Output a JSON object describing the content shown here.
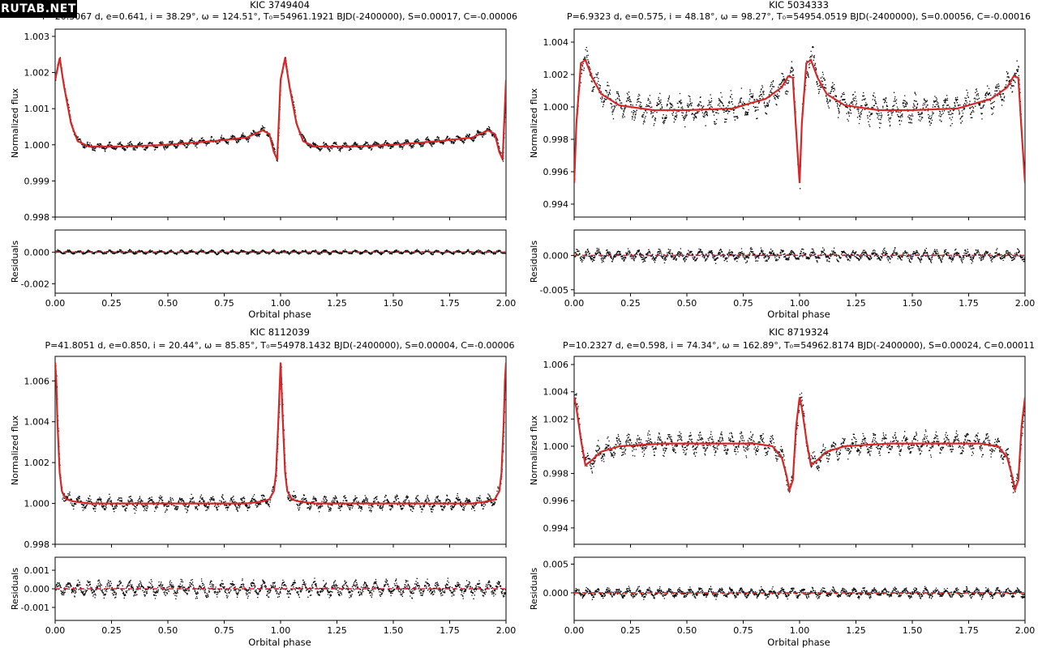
{
  "watermark": "RUTAB.NET",
  "colors": {
    "model": "#d62728",
    "points": "#000000",
    "frame": "#000000"
  },
  "chart_data": [
    {
      "type": "scatter",
      "title": "KIC 3749404",
      "subtitle": "P=20.3067 d, e=0.641, i = 38.29°, ω = 124.51°, T₀=54961.1921 BJD(-2400000), S=0.00017, C=-0.00006",
      "xlabel": "Orbital phase",
      "ylabel": "Normalized flux",
      "residual_ylabel": "Residuals",
      "xlim": [
        0,
        2
      ],
      "ylim": [
        0.998,
        1.0032
      ],
      "residual_ylim": [
        -0.0026,
        0.0014
      ],
      "xticks": [
        0,
        0.25,
        0.5,
        0.75,
        1.0,
        1.25,
        1.5,
        1.75,
        2.0
      ],
      "xtick_labels": [
        "0.00",
        "0.25",
        "0.50",
        "0.75",
        "1.00",
        "1.25",
        "1.50",
        "1.75",
        "2.00"
      ],
      "yticks": [
        0.998,
        0.999,
        1.0,
        1.001,
        1.002,
        1.003
      ],
      "ytick_labels": [
        "0.998",
        "0.999",
        "1.000",
        "1.001",
        "1.002",
        "1.003"
      ],
      "residual_yticks": [
        -0.002,
        0.0
      ],
      "residual_ytick_labels": [
        "-0.002",
        "0.000"
      ],
      "model": {
        "x": [
          0,
          0.02,
          0.04,
          0.07,
          0.1,
          0.15,
          0.3,
          0.5,
          0.7,
          0.85,
          0.92,
          0.95,
          0.97,
          0.985,
          1.0,
          1.02,
          1.04,
          1.07,
          1.1,
          1.15,
          1.3,
          1.5,
          1.7,
          1.85,
          1.92,
          1.95,
          1.97,
          1.985,
          2.0
        ],
        "y": [
          1.0018,
          1.0024,
          1.0016,
          1.0006,
          1.0001,
          0.99995,
          0.99995,
          1.0,
          1.0001,
          1.0002,
          1.0004,
          1.0003,
          0.9998,
          0.9996,
          1.0018,
          1.0024,
          1.0016,
          1.0006,
          1.0001,
          0.99995,
          0.99995,
          1.0,
          1.0001,
          1.0002,
          1.0004,
          1.0003,
          0.9998,
          0.9996,
          1.0018
        ]
      },
      "noise": {
        "flux_amp": 0.00016,
        "resid_amp": 0.00018
      }
    },
    {
      "type": "scatter",
      "title": "KIC 5034333",
      "subtitle": "P=6.9323 d, e=0.575, i = 48.18°, ω = 98.27°, T₀=54954.0519 BJD(-2400000), S=0.00056, C=-0.00016",
      "xlabel": "Orbital phase",
      "ylabel": "Normalized flux",
      "residual_ylabel": "Residuals",
      "xlim": [
        0,
        2
      ],
      "ylim": [
        0.9932,
        1.0048
      ],
      "residual_ylim": [
        -0.0055,
        0.0037
      ],
      "xticks": [
        0,
        0.25,
        0.5,
        0.75,
        1.0,
        1.25,
        1.5,
        1.75,
        2.0
      ],
      "xtick_labels": [
        "0.00",
        "0.25",
        "0.50",
        "0.75",
        "1.00",
        "1.25",
        "1.50",
        "1.75",
        "2.00"
      ],
      "yticks": [
        0.994,
        0.996,
        0.998,
        1.0,
        1.002,
        1.004
      ],
      "ytick_labels": [
        "0.994",
        "0.996",
        "0.998",
        "1.000",
        "1.002",
        "1.004"
      ],
      "residual_yticks": [
        -0.005,
        0.0
      ],
      "residual_ytick_labels": [
        "-0.005",
        "0.000"
      ],
      "model": {
        "x": [
          0,
          0.01,
          0.03,
          0.05,
          0.08,
          0.12,
          0.2,
          0.35,
          0.5,
          0.7,
          0.85,
          0.92,
          0.95,
          0.97,
          0.985,
          1.0,
          1.01,
          1.03,
          1.05,
          1.08,
          1.12,
          1.2,
          1.35,
          1.5,
          1.7,
          1.85,
          1.92,
          1.95,
          1.97,
          1.985,
          2.0
        ],
        "y": [
          0.9953,
          0.999,
          1.0027,
          1.0029,
          1.0018,
          1.0008,
          1.0001,
          0.9998,
          0.9998,
          0.9999,
          1.0005,
          1.0012,
          1.0019,
          1.0018,
          0.9985,
          0.9953,
          0.999,
          1.0027,
          1.0029,
          1.0018,
          1.0008,
          1.0001,
          0.9998,
          0.9998,
          0.9999,
          1.0005,
          1.0012,
          1.0019,
          1.0018,
          0.9985,
          0.9953
        ]
      },
      "noise": {
        "flux_amp": 0.0012,
        "resid_amp": 0.0012
      }
    },
    {
      "type": "scatter",
      "title": "KIC 8112039",
      "subtitle": "P=41.8051 d, e=0.850, i = 20.44°, ω = 85.85°, T₀=54978.1432 BJD(-2400000), S=0.00004, C=-0.00006",
      "xlabel": "Orbital phase",
      "ylabel": "Normalized flux",
      "residual_ylabel": "Residuals",
      "xlim": [
        0,
        2
      ],
      "ylim": [
        0.998,
        1.0072
      ],
      "residual_ylim": [
        -0.0017,
        0.0017
      ],
      "xticks": [
        0,
        0.25,
        0.5,
        0.75,
        1.0,
        1.25,
        1.5,
        1.75,
        2.0
      ],
      "xtick_labels": [
        "0.00",
        "0.25",
        "0.50",
        "0.75",
        "1.00",
        "1.25",
        "1.50",
        "1.75",
        "2.00"
      ],
      "yticks": [
        0.998,
        1.0,
        1.002,
        1.004,
        1.006
      ],
      "ytick_labels": [
        "0.998",
        "1.000",
        "1.002",
        "1.004",
        "1.006"
      ],
      "residual_yticks": [
        -0.001,
        0.0,
        0.001
      ],
      "residual_ytick_labels": [
        "-0.001",
        "0.000",
        "0.001"
      ],
      "model": {
        "x": [
          0,
          0.005,
          0.01,
          0.02,
          0.03,
          0.05,
          0.08,
          0.15,
          0.5,
          0.85,
          0.92,
          0.95,
          0.97,
          0.98,
          0.99,
          1.0,
          1.01,
          1.02,
          1.03,
          1.05,
          1.08,
          1.15,
          1.5,
          1.85,
          1.92,
          1.95,
          1.97,
          1.98,
          1.99,
          1.995,
          2.0
        ],
        "y": [
          1.0069,
          1.006,
          1.004,
          1.0015,
          1.0006,
          1.0002,
          1.0001,
          1.0,
          1.0,
          1.0,
          1.0001,
          1.0002,
          1.0006,
          1.0015,
          1.004,
          1.0069,
          1.004,
          1.0015,
          1.0006,
          1.0002,
          1.0001,
          1.0,
          1.0,
          1.0,
          1.0001,
          1.0002,
          1.0006,
          1.0015,
          1.004,
          1.006,
          1.0069
        ]
      },
      "noise": {
        "flux_amp": 0.0005,
        "resid_amp": 0.0006
      }
    },
    {
      "type": "scatter",
      "title": "KIC 8719324",
      "subtitle": "P=10.2327 d, e=0.598, i = 74.34°, ω = 162.89°, T₀=54962.8174 BJD(-2400000), S=0.00024, C=0.00011",
      "xlabel": "Orbital phase",
      "ylabel": "Normalized flux",
      "residual_ylabel": "Residuals",
      "xlim": [
        0,
        2
      ],
      "ylim": [
        0.9928,
        1.0066
      ],
      "residual_ylim": [
        -0.0048,
        0.0062
      ],
      "xticks": [
        0,
        0.25,
        0.5,
        0.75,
        1.0,
        1.25,
        1.5,
        1.75,
        2.0
      ],
      "xtick_labels": [
        "0.00",
        "0.25",
        "0.50",
        "0.75",
        "1.00",
        "1.25",
        "1.50",
        "1.75",
        "2.00"
      ],
      "yticks": [
        0.994,
        0.996,
        0.998,
        1.0,
        1.002,
        1.004,
        1.006
      ],
      "ytick_labels": [
        "0.994",
        "0.996",
        "0.998",
        "1.000",
        "1.002",
        "1.004",
        "1.006"
      ],
      "residual_yticks": [
        0.0,
        0.005
      ],
      "residual_ytick_labels": [
        "0.000",
        "0.005"
      ],
      "model": {
        "x": [
          0,
          0.01,
          0.03,
          0.05,
          0.08,
          0.12,
          0.2,
          0.4,
          0.6,
          0.8,
          0.88,
          0.92,
          0.94,
          0.955,
          0.97,
          0.985,
          1.0,
          1.01,
          1.03,
          1.05,
          1.08,
          1.12,
          1.2,
          1.4,
          1.6,
          1.8,
          1.88,
          1.92,
          1.94,
          1.955,
          1.97,
          1.985,
          2.0
        ],
        "y": [
          1.0036,
          1.0028,
          1.0005,
          0.9986,
          0.999,
          0.9996,
          1.0,
          1.0002,
          1.0002,
          1.0002,
          1.0,
          0.9992,
          0.998,
          0.9968,
          0.9975,
          1.0015,
          1.0036,
          1.0028,
          1.0005,
          0.9986,
          0.999,
          0.9996,
          1.0,
          1.0002,
          1.0002,
          1.0002,
          1.0,
          0.9992,
          0.998,
          0.9968,
          0.9975,
          1.0015,
          1.0036
        ]
      },
      "noise": {
        "flux_amp": 0.0011,
        "resid_amp": 0.0012
      }
    }
  ]
}
